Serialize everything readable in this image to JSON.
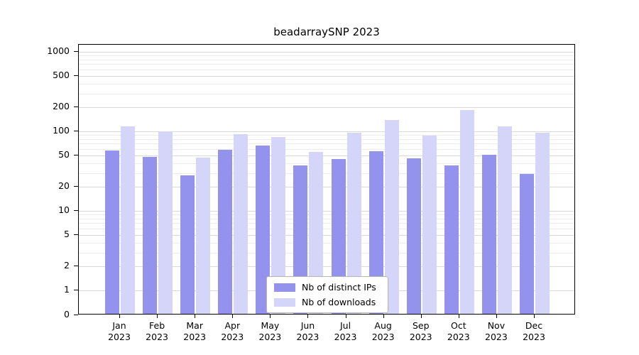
{
  "chart_data": {
    "type": "bar",
    "title": "beadarraySNP 2023",
    "categories": [
      "Jan",
      "Feb",
      "Mar",
      "Apr",
      "May",
      "Jun",
      "Jul",
      "Aug",
      "Sep",
      "Oct",
      "Nov",
      "Dec"
    ],
    "x_year": "2023",
    "series": [
      {
        "name": "Nb of distinct IPs",
        "color": "#9393ee",
        "values": [
          57,
          48,
          28,
          58,
          66,
          37,
          45,
          56,
          46,
          37,
          51,
          29
        ]
      },
      {
        "name": "Nb of downloads",
        "color": "#d5d5f9",
        "values": [
          115,
          100,
          47,
          93,
          84,
          55,
          96,
          140,
          89,
          185,
          116,
          95
        ]
      }
    ],
    "y_ticks": [
      0,
      1,
      2,
      5,
      10,
      20,
      50,
      100,
      200,
      500,
      1000
    ],
    "y_scale": "symlog",
    "ylim": [
      0,
      1000
    ],
    "grid": true,
    "legend_position": "lower center"
  }
}
